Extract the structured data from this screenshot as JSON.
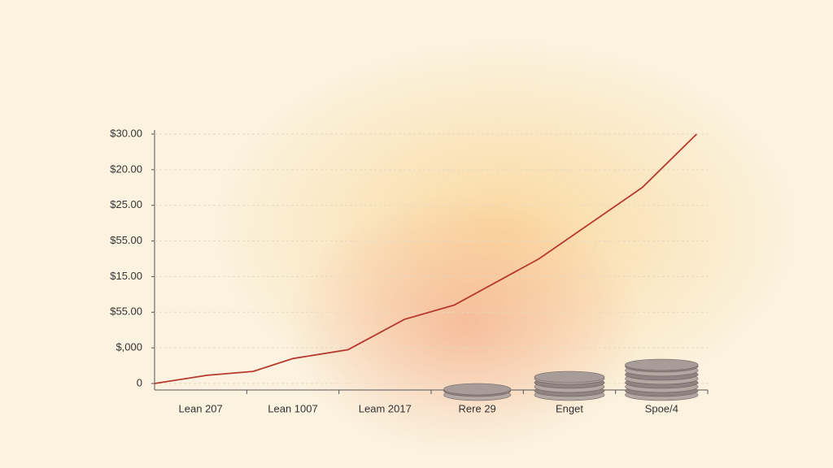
{
  "chart_data": {
    "type": "line",
    "categories": [
      "Lean 207",
      "Lean 1007",
      "Leam 2017",
      "Rere 29",
      "Enget",
      "Spoe/4"
    ],
    "xlim": [
      0,
      6
    ],
    "ylim": [
      0,
      7
    ],
    "yticks": [
      {
        "value": 0,
        "label": "0"
      },
      {
        "value": 1,
        "label": "$,000"
      },
      {
        "value": 2,
        "label": "$55.00"
      },
      {
        "value": 3,
        "label": "$15.00"
      },
      {
        "value": 4,
        "label": "$55.00"
      },
      {
        "value": 5,
        "label": "$25.00"
      },
      {
        "value": 6,
        "label": "$20.00"
      },
      {
        "value": 7,
        "label": "$30.00"
      }
    ],
    "grid": true,
    "series": [
      {
        "color": "#b8392f",
        "x": [
          0,
          0.57,
          1.07,
          1.5,
          2.1,
          2.71,
          3.25,
          4.17,
          5.29,
          5.88
        ],
        "values": [
          0,
          0.23,
          0.34,
          0.7,
          0.95,
          1.8,
          2.2,
          3.5,
          5.5,
          7.0
        ]
      }
    ],
    "stacks": {
      "color": "#a89c98",
      "values": [
        null,
        null,
        null,
        2,
        5,
        8
      ]
    }
  }
}
